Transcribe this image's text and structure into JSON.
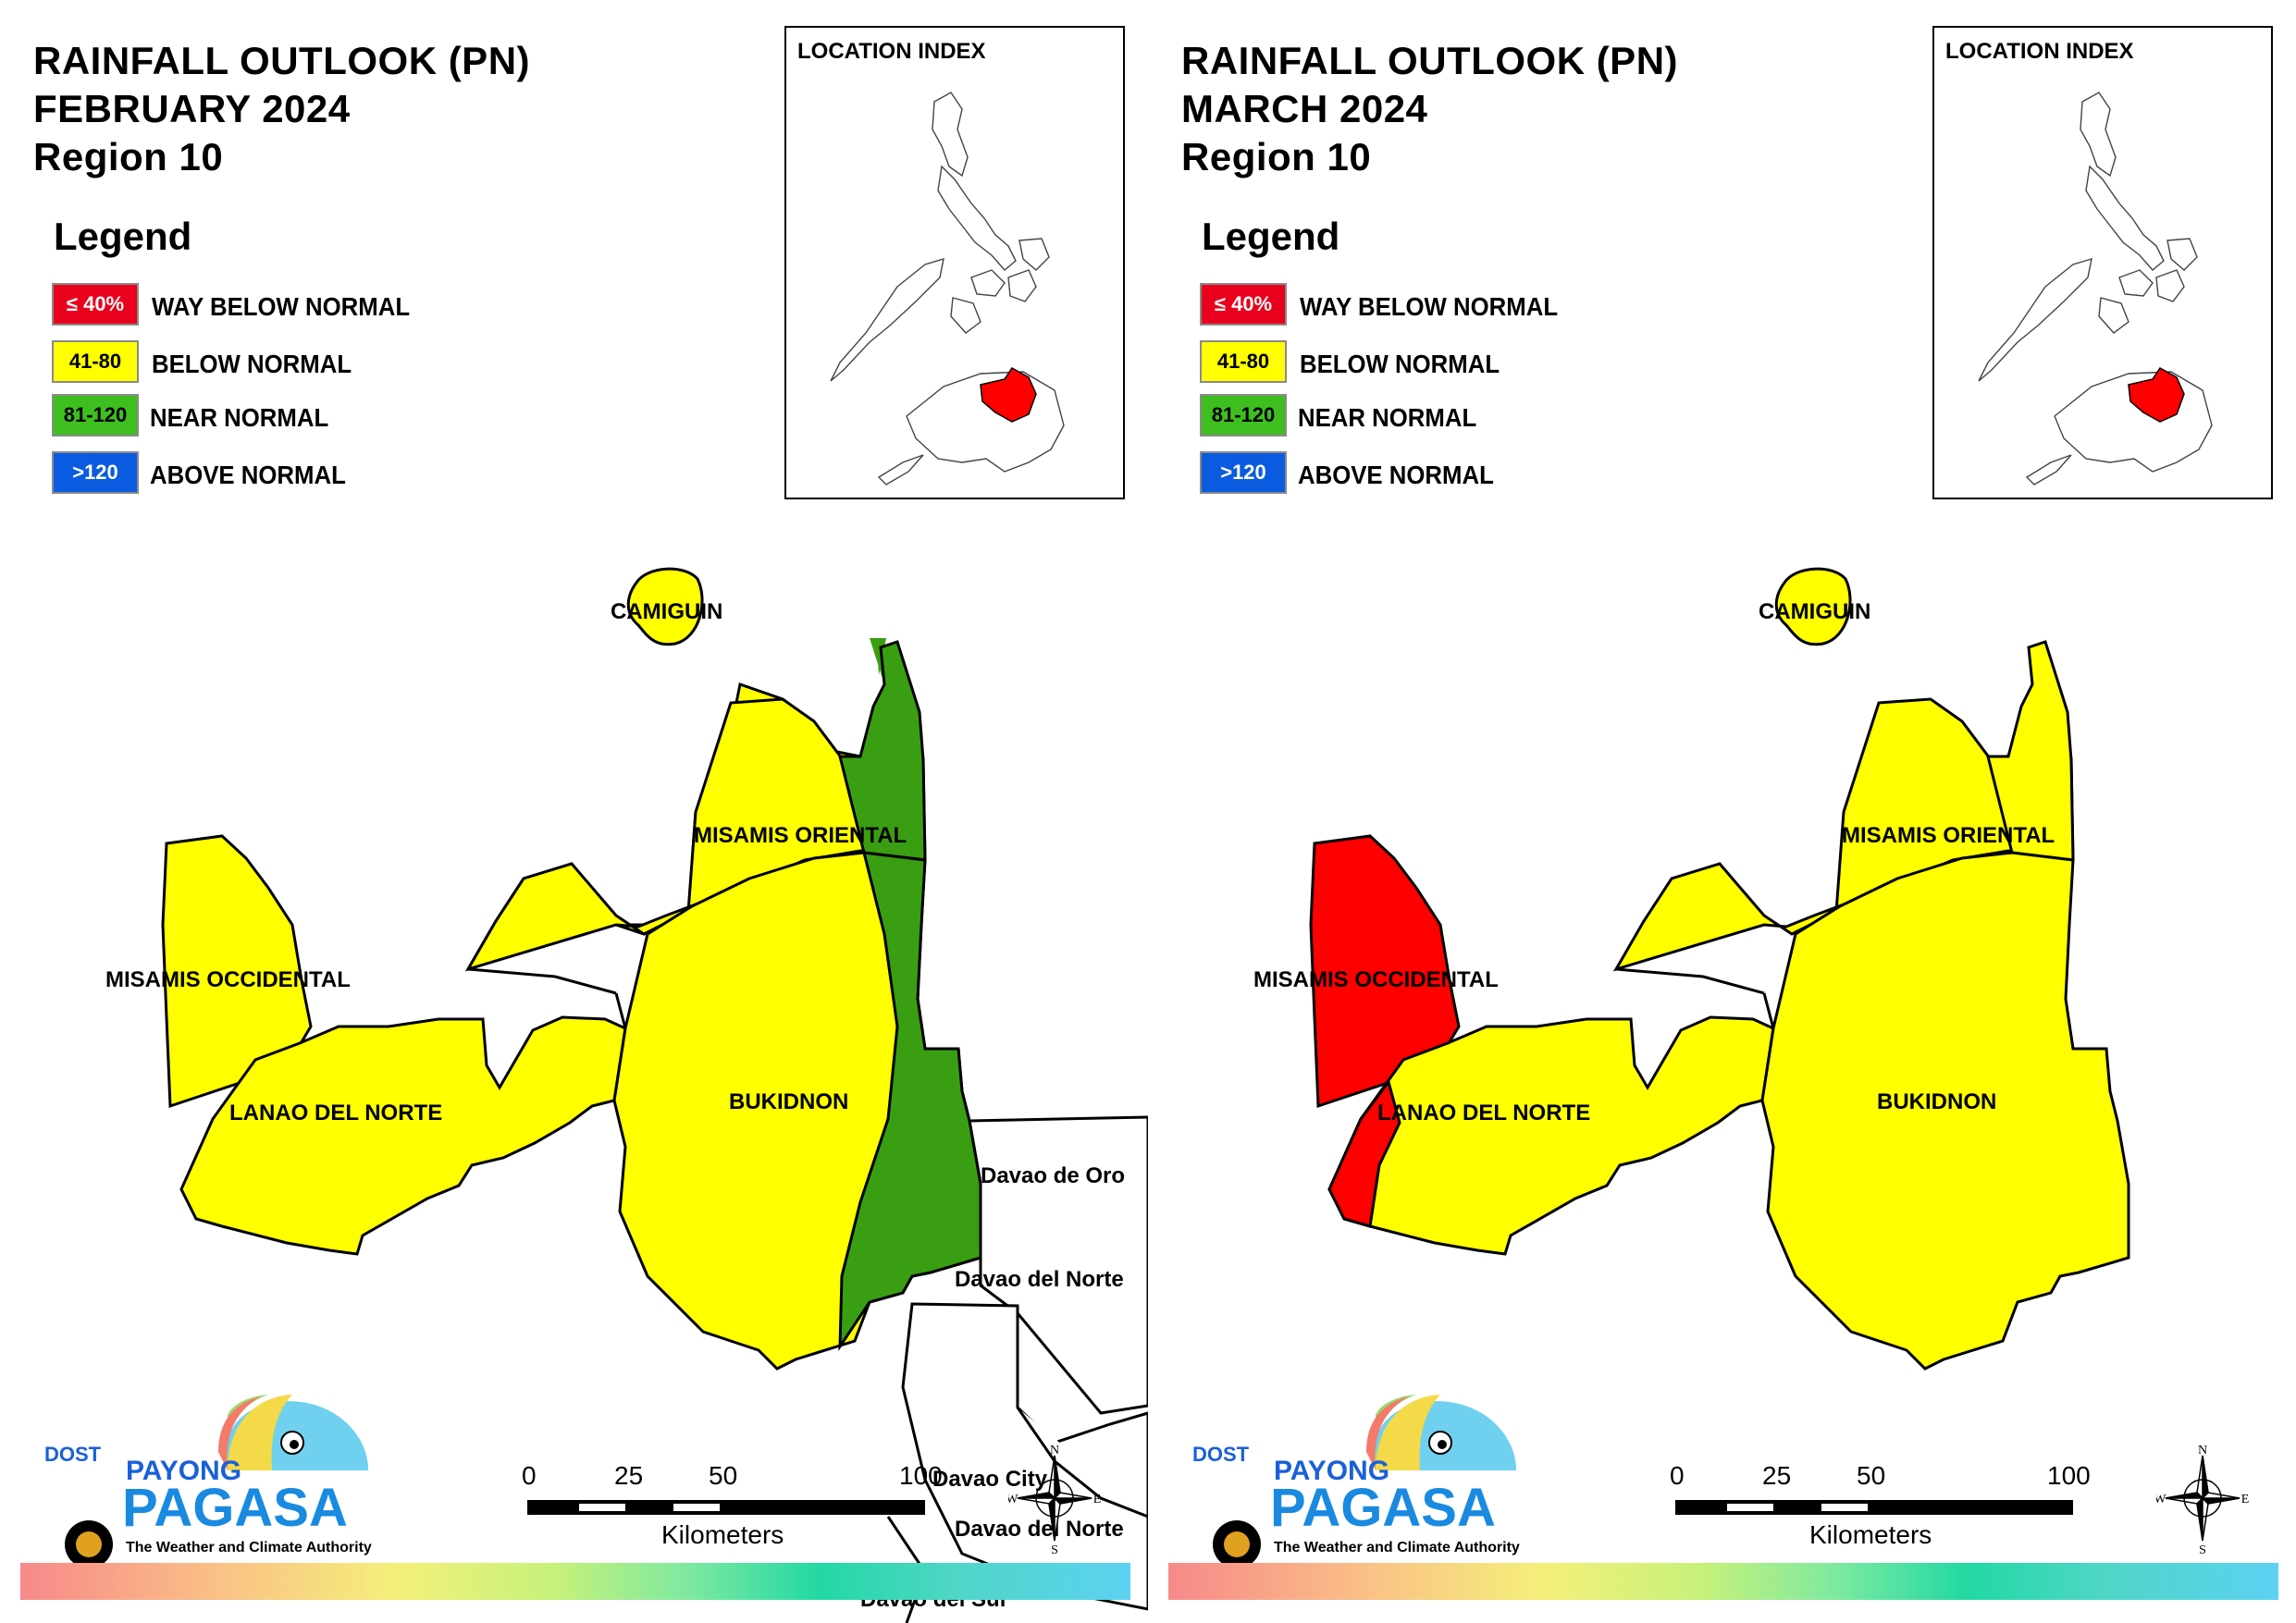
{
  "panels": [
    {
      "title_line1": "RAINFALL OUTLOOK (PN)",
      "title_line2": "FEBRUARY 2024",
      "title_line3": "Region 10",
      "legend_title": "Legend",
      "legend": [
        {
          "swatch": "≤ 40%",
          "label": "WAY BELOW NORMAL",
          "color": "#e8001c",
          "text_color": "#ffffff"
        },
        {
          "swatch": "41-80",
          "label": "BELOW NORMAL",
          "color": "#ffff00",
          "text_color": "#000000"
        },
        {
          "swatch": "81-120",
          "label": "NEAR NORMAL",
          "color": "#3fbf1f",
          "text_color": "#000000"
        },
        {
          "swatch": ">120",
          "label": "ABOVE NORMAL",
          "color": "#0a5be0",
          "text_color": "#ffffff"
        }
      ],
      "index_title": "LOCATION INDEX",
      "provinces": {
        "camiguin": "CAMIGUIN",
        "misamis_oriental": "MISAMIS ORIENTAL",
        "misamis_occidental": "MISAMIS OCCIDENTAL",
        "lanao_del_norte": "LANAO DEL NORTE",
        "bukidnon": "BUKIDNON"
      },
      "neighbors": [
        "Davao de Oro",
        "Davao del Norte",
        "Davao City",
        "Davao del Norte",
        "Davao del Sur"
      ],
      "scale": {
        "ticks": [
          "0",
          "25",
          "50",
          "100"
        ],
        "unit": "Kilometers"
      },
      "compass": {
        "n": "N",
        "s": "S",
        "e": "E",
        "w": "W"
      },
      "logo": {
        "dost": "DOST",
        "payong": "PAYONG",
        "pagasa": "PAGASA",
        "tagline": "The Weather and Climate Authority"
      }
    },
    {
      "title_line1": "RAINFALL OUTLOOK (PN)",
      "title_line2": "MARCH 2024",
      "title_line3": "Region 10",
      "legend_title": "Legend",
      "legend": [
        {
          "swatch": "≤ 40%",
          "label": "WAY BELOW NORMAL",
          "color": "#e8001c",
          "text_color": "#ffffff"
        },
        {
          "swatch": "41-80",
          "label": "BELOW NORMAL",
          "color": "#ffff00",
          "text_color": "#000000"
        },
        {
          "swatch": "81-120",
          "label": "NEAR NORMAL",
          "color": "#3fbf1f",
          "text_color": "#000000"
        },
        {
          "swatch": ">120",
          "label": "ABOVE NORMAL",
          "color": "#0a5be0",
          "text_color": "#ffffff"
        }
      ],
      "index_title": "LOCATION INDEX",
      "provinces": {
        "camiguin": "CAMIGUIN",
        "misamis_oriental": "MISAMIS ORIENTAL",
        "misamis_occidental": "MISAMIS OCCIDENTAL",
        "lanao_del_norte": "LANAO DEL NORTE",
        "bukidnon": "BUKIDNON"
      },
      "scale": {
        "ticks": [
          "0",
          "25",
          "50",
          "100"
        ],
        "unit": "Kilometers"
      },
      "compass": {
        "n": "N",
        "s": "S",
        "e": "E",
        "w": "W"
      },
      "logo": {
        "dost": "DOST",
        "payong": "PAYONG",
        "pagasa": "PAGASA",
        "tagline": "The Weather and Climate Authority"
      }
    }
  ],
  "colors": {
    "yellow": "#ffff00",
    "green": "#3a9e12",
    "red": "#ff0000"
  }
}
